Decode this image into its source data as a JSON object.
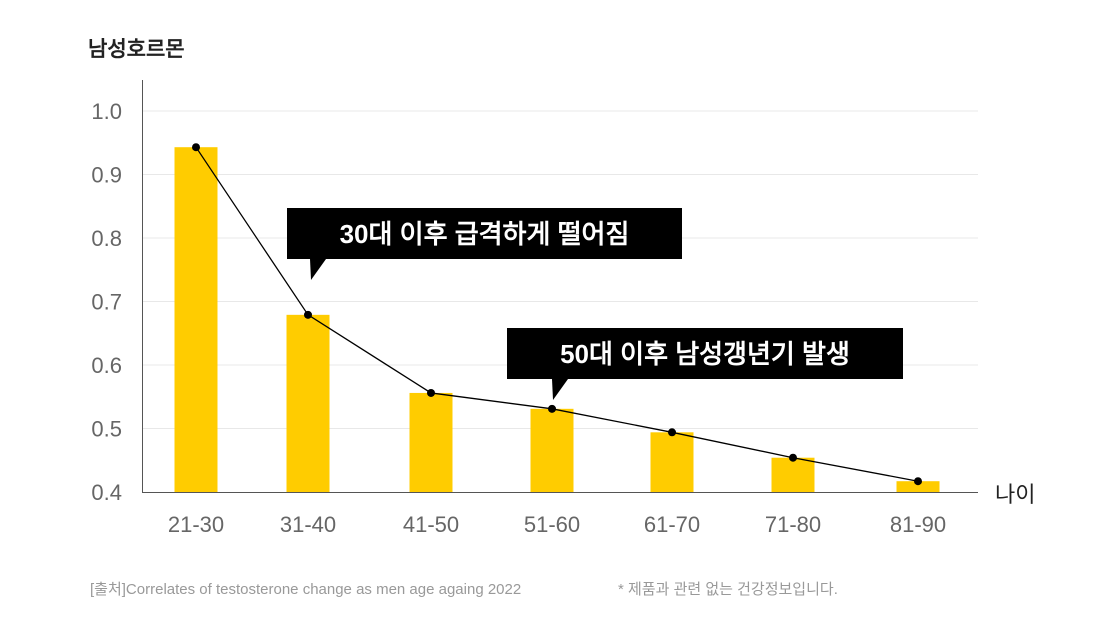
{
  "chart_data": {
    "type": "bar",
    "title": "남성호르몬",
    "ylabel": "남성호르몬",
    "xlabel": "나이",
    "ylim": [
      0.4,
      1.0
    ],
    "yticks": [
      "0.4",
      "0.5",
      "0.6",
      "0.7",
      "0.8",
      "0.9",
      "1.0"
    ],
    "grid": true,
    "categories": [
      "21-30",
      "31-40",
      "41-50",
      "51-60",
      "61-70",
      "71-80",
      "81-90"
    ],
    "values": [
      0.943,
      0.679,
      0.556,
      0.531,
      0.494,
      0.454,
      0.417
    ],
    "overlay_line": true,
    "colors": {
      "bar": "#FFCC00",
      "line": "#000000",
      "callout": "#000000"
    },
    "annotations": [
      {
        "text": "30대 이후 급격하게 떨어짐",
        "points_to": "31-40"
      },
      {
        "text": "50대 이후 남성갱년기 발생",
        "points_to": "51-60"
      }
    ]
  },
  "footer": {
    "source": "[출처]Correlates of testosterone change as men age againg 2022",
    "disclaimer": "*    제품과 관련 없는 건강정보입니다."
  }
}
